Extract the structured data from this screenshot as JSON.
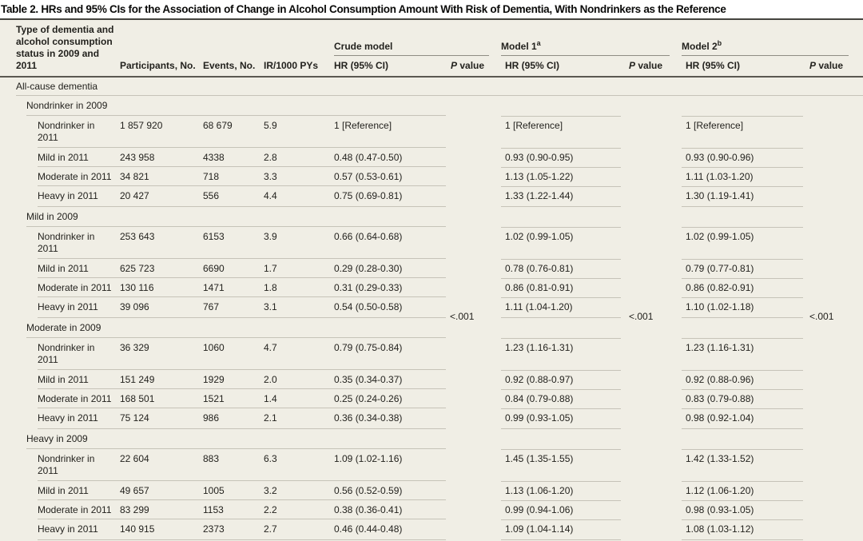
{
  "title": "Table 2. HRs and 95% CIs for the Association of Change in Alcohol Consumption Amount With Risk of Dementia, With Nondrinkers as the Reference",
  "columns": {
    "stub": "Type of dementia and alcohol consumption status in 2009 and 2011",
    "participants": "Participants, No.",
    "events": "Events, No.",
    "ir": "IR/1000 PYs",
    "hr": "HR (95% CI)",
    "p_italic": "P",
    "p_rest": " value",
    "models": [
      {
        "name": "Crude model",
        "sup": ""
      },
      {
        "name": "Model 1",
        "sup": "a"
      },
      {
        "name": "Model 2",
        "sup": "b"
      }
    ]
  },
  "section": {
    "label": "All-cause dementia",
    "p_crude": "<.001",
    "p_model1": "<.001",
    "p_model2": "<.001"
  },
  "groups": [
    {
      "label": "Nondrinker in 2009",
      "rows": [
        {
          "label": "Nondrinker in 2011",
          "participants": "1 857 920",
          "events": "68 679",
          "ir": "5.9",
          "crude": "1 [Reference]",
          "model1": "1 [Reference]",
          "model2": "1 [Reference]"
        },
        {
          "label": "Mild in 2011",
          "participants": "243 958",
          "events": "4338",
          "ir": "2.8",
          "crude": "0.48 (0.47-0.50)",
          "model1": "0.93 (0.90-0.95)",
          "model2": "0.93 (0.90-0.96)"
        },
        {
          "label": "Moderate in 2011",
          "participants": "34 821",
          "events": "718",
          "ir": "3.3",
          "crude": "0.57 (0.53-0.61)",
          "model1": "1.13 (1.05-1.22)",
          "model2": "1.11 (1.03-1.20)"
        },
        {
          "label": "Heavy in 2011",
          "participants": "20 427",
          "events": "556",
          "ir": "4.4",
          "crude": "0.75 (0.69-0.81)",
          "model1": "1.33 (1.22-1.44)",
          "model2": "1.30 (1.19-1.41)"
        }
      ]
    },
    {
      "label": "Mild in 2009",
      "rows": [
        {
          "label": "Nondrinker in 2011",
          "participants": "253 643",
          "events": "6153",
          "ir": "3.9",
          "crude": "0.66 (0.64-0.68)",
          "model1": "1.02 (0.99-1.05)",
          "model2": "1.02 (0.99-1.05)"
        },
        {
          "label": "Mild in 2011",
          "participants": "625 723",
          "events": "6690",
          "ir": "1.7",
          "crude": "0.29 (0.28-0.30)",
          "model1": "0.78 (0.76-0.81)",
          "model2": "0.79 (0.77-0.81)"
        },
        {
          "label": "Moderate in 2011",
          "participants": "130 116",
          "events": "1471",
          "ir": "1.8",
          "crude": "0.31 (0.29-0.33)",
          "model1": "0.86 (0.81-0.91)",
          "model2": "0.86 (0.82-0.91)"
        },
        {
          "label": "Heavy in 2011",
          "participants": "39 096",
          "events": "767",
          "ir": "3.1",
          "crude": "0.54 (0.50-0.58)",
          "model1": "1.11 (1.04-1.20)",
          "model2": "1.10 (1.02-1.18)"
        }
      ]
    },
    {
      "label": "Moderate in 2009",
      "rows": [
        {
          "label": "Nondrinker in 2011",
          "participants": "36 329",
          "events": "1060",
          "ir": "4.7",
          "crude": "0.79 (0.75-0.84)",
          "model1": "1.23 (1.16-1.31)",
          "model2": "1.23 (1.16-1.31)"
        },
        {
          "label": "Mild in 2011",
          "participants": "151 249",
          "events": "1929",
          "ir": "2.0",
          "crude": "0.35 (0.34-0.37)",
          "model1": "0.92 (0.88-0.97)",
          "model2": "0.92 (0.88-0.96)"
        },
        {
          "label": "Moderate in 2011",
          "participants": "168 501",
          "events": "1521",
          "ir": "1.4",
          "crude": "0.25 (0.24-0.26)",
          "model1": "0.84 (0.79-0.88)",
          "model2": "0.83 (0.79-0.88)"
        },
        {
          "label": "Heavy in 2011",
          "participants": "75 124",
          "events": "986",
          "ir": "2.1",
          "crude": "0.36 (0.34-0.38)",
          "model1": "0.99 (0.93-1.05)",
          "model2": "0.98 (0.92-1.04)"
        }
      ]
    },
    {
      "label": "Heavy in 2009",
      "rows": [
        {
          "label": "Nondrinker in 2011",
          "participants": "22 604",
          "events": "883",
          "ir": "6.3",
          "crude": "1.09 (1.02-1.16)",
          "model1": "1.45 (1.35-1.55)",
          "model2": "1.42 (1.33-1.52)"
        },
        {
          "label": "Mild in 2011",
          "participants": "49 657",
          "events": "1005",
          "ir": "3.2",
          "crude": "0.56 (0.52-0.59)",
          "model1": "1.13 (1.06-1.20)",
          "model2": "1.12 (1.06-1.20)"
        },
        {
          "label": "Moderate in 2011",
          "participants": "83 299",
          "events": "1153",
          "ir": "2.2",
          "crude": "0.38 (0.36-0.41)",
          "model1": "0.99 (0.94-1.06)",
          "model2": "0.98 (0.93-1.05)"
        },
        {
          "label": "Heavy in 2011",
          "participants": "140 915",
          "events": "2373",
          "ir": "2.7",
          "crude": "0.46 (0.44-0.48)",
          "model1": "1.09 (1.04-1.14)",
          "model2": "1.08 (1.03-1.12)"
        }
      ]
    }
  ]
}
